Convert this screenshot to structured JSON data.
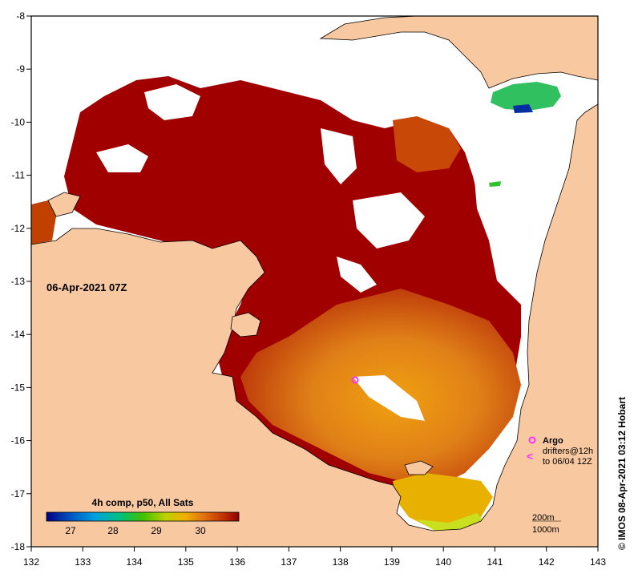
{
  "map": {
    "timestamp": "06-Apr-2021 07Z",
    "lon_ticks": [
      "132",
      "133",
      "134",
      "135",
      "136",
      "137",
      "138",
      "139",
      "140",
      "141",
      "142",
      "143"
    ],
    "lat_ticks": [
      "-8",
      "-9",
      "-10",
      "-11",
      "-12",
      "-13",
      "-14",
      "-15",
      "-16",
      "-17",
      "-18"
    ],
    "credit": "© IMOS 08-Apr-2021 03:12 Hobart",
    "legend": {
      "argo": "Argo",
      "drifters_line1": "drifters@12h",
      "drifters_line2": "to 06/04 12Z",
      "depth_200": "200m",
      "depth_1000": "1000m"
    },
    "colorbar": {
      "title": "4h comp, p50, All Sats",
      "ticks": [
        "27",
        "28",
        "29",
        "30"
      ]
    },
    "colors": {
      "land": "#f8c8a0",
      "sst_hot": "#a00000",
      "sst_warm": "#d86010",
      "sst_mid": "#f0a000",
      "sst_cool": "#40c040",
      "no_data": "#ffffff",
      "argo": "#ff30ff"
    }
  }
}
